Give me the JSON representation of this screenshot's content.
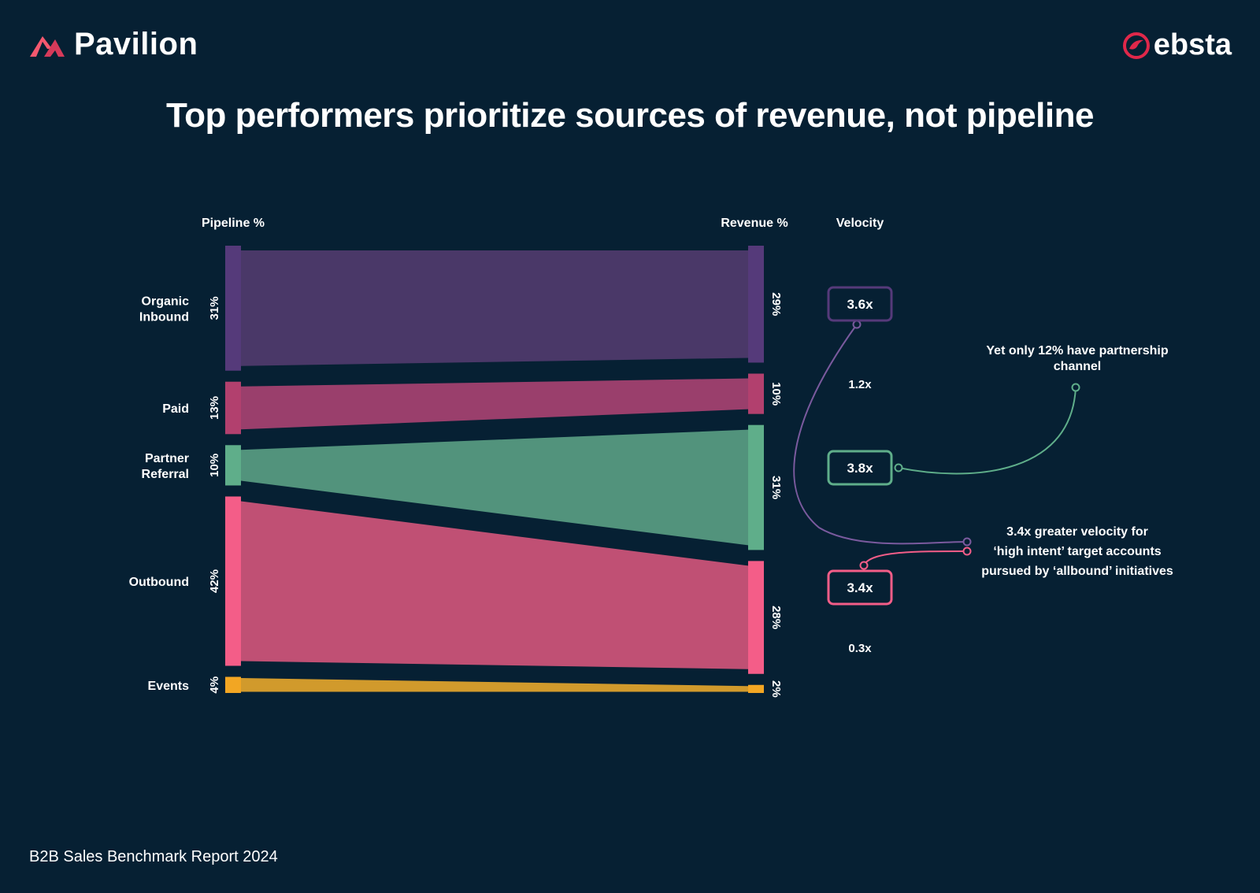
{
  "brand_left": "Pavilion",
  "brand_right": "ebsta",
  "headline": "Top performers prioritize sources of revenue, not pipeline",
  "footer": "B2B Sales Benchmark Report 2024",
  "chart_data": {
    "type": "sankey",
    "left_header": "Pipeline %",
    "right_header": "Revenue %",
    "velocity_header": "Velocity",
    "categories": [
      {
        "label_lines": [
          "Organic",
          "Inbound"
        ],
        "pipeline": 31,
        "pipeline_label": "31%",
        "revenue": 29,
        "revenue_label": "29%",
        "velocity": "3.6x",
        "velocity_boxed": true,
        "color": "#553a7a",
        "flow_color": "#4a3868"
      },
      {
        "label_lines": [
          "Paid"
        ],
        "pipeline": 13,
        "pipeline_label": "13%",
        "revenue": 10,
        "revenue_label": "10%",
        "velocity": "1.2x",
        "velocity_boxed": false,
        "color": "#b2406e",
        "flow_color": "#9a3f6c"
      },
      {
        "label_lines": [
          "Partner",
          "Referral"
        ],
        "pipeline": 10,
        "pipeline_label": "10%",
        "revenue": 31,
        "revenue_label": "31%",
        "velocity": "3.8x",
        "velocity_boxed": true,
        "color": "#5fae8a",
        "flow_color": "#52937c"
      },
      {
        "label_lines": [
          "Outbound"
        ],
        "pipeline": 42,
        "pipeline_label": "42%",
        "revenue": 28,
        "revenue_label": "28%",
        "velocity": "3.4x",
        "velocity_boxed": true,
        "color": "#f45d88",
        "flow_color": "#c05074"
      },
      {
        "label_lines": [
          "Events"
        ],
        "pipeline": 4,
        "pipeline_label": "4%",
        "revenue": 2,
        "revenue_label": "2%",
        "velocity": "0.3x",
        "velocity_boxed": false,
        "color": "#f2a623",
        "flow_color": "#d19a2c"
      }
    ],
    "annotations": [
      {
        "lines": [
          "Yet only 12% have partnership",
          "channel"
        ],
        "target": "Partner Referral"
      },
      {
        "lines": [
          "3.4x greater velocity for",
          "‘high intent’ target accounts",
          "pursued by ‘allbound’ initiatives"
        ],
        "target": "Organic Inbound, Outbound"
      }
    ]
  }
}
